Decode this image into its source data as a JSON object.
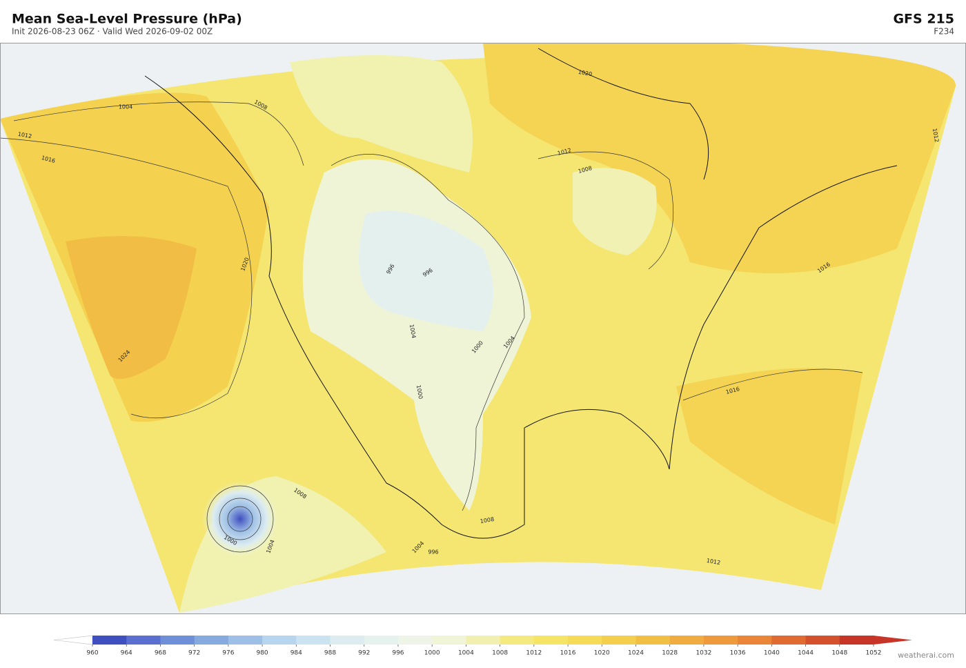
{
  "header": {
    "title": "Mean Sea-Level Pressure  (hPa)",
    "subtitle": "Init 2026-08-23 06Z   ·   Valid Wed 2026-09-02 00Z",
    "model": "GFS  215",
    "forecast": "F234"
  },
  "map": {
    "contour_labels": [
      1004,
      1008,
      1012,
      1016,
      1020,
      1012,
      1008,
      1020,
      1024,
      996,
      996,
      1004,
      1000,
      1004,
      1000,
      1008,
      1000,
      1004,
      1004,
      996,
      1008,
      1012,
      1016,
      1016,
      1012
    ]
  },
  "colorbar": {
    "ticks": [
      960,
      964,
      968,
      972,
      976,
      980,
      984,
      988,
      992,
      996,
      1000,
      1004,
      1008,
      1012,
      1016,
      1020,
      1024,
      1028,
      1032,
      1036,
      1040,
      1044,
      1048,
      1052
    ],
    "colors": [
      "#3f4fbf",
      "#5a6fcf",
      "#6f8fd8",
      "#86a9de",
      "#9fc0e6",
      "#b7d5ee",
      "#cbe3f0",
      "#dcecf0",
      "#e6f2ee",
      "#eef5e8",
      "#f0f5d8",
      "#f2f0b0",
      "#f4ea80",
      "#f5e466",
      "#f5db58",
      "#f4cf4e",
      "#f2bf45",
      "#f0ac40",
      "#ee9a3c",
      "#ea8436",
      "#e06a32",
      "#d5502d",
      "#c73528"
    ]
  },
  "footer": {
    "credit": "weatherai.com"
  }
}
